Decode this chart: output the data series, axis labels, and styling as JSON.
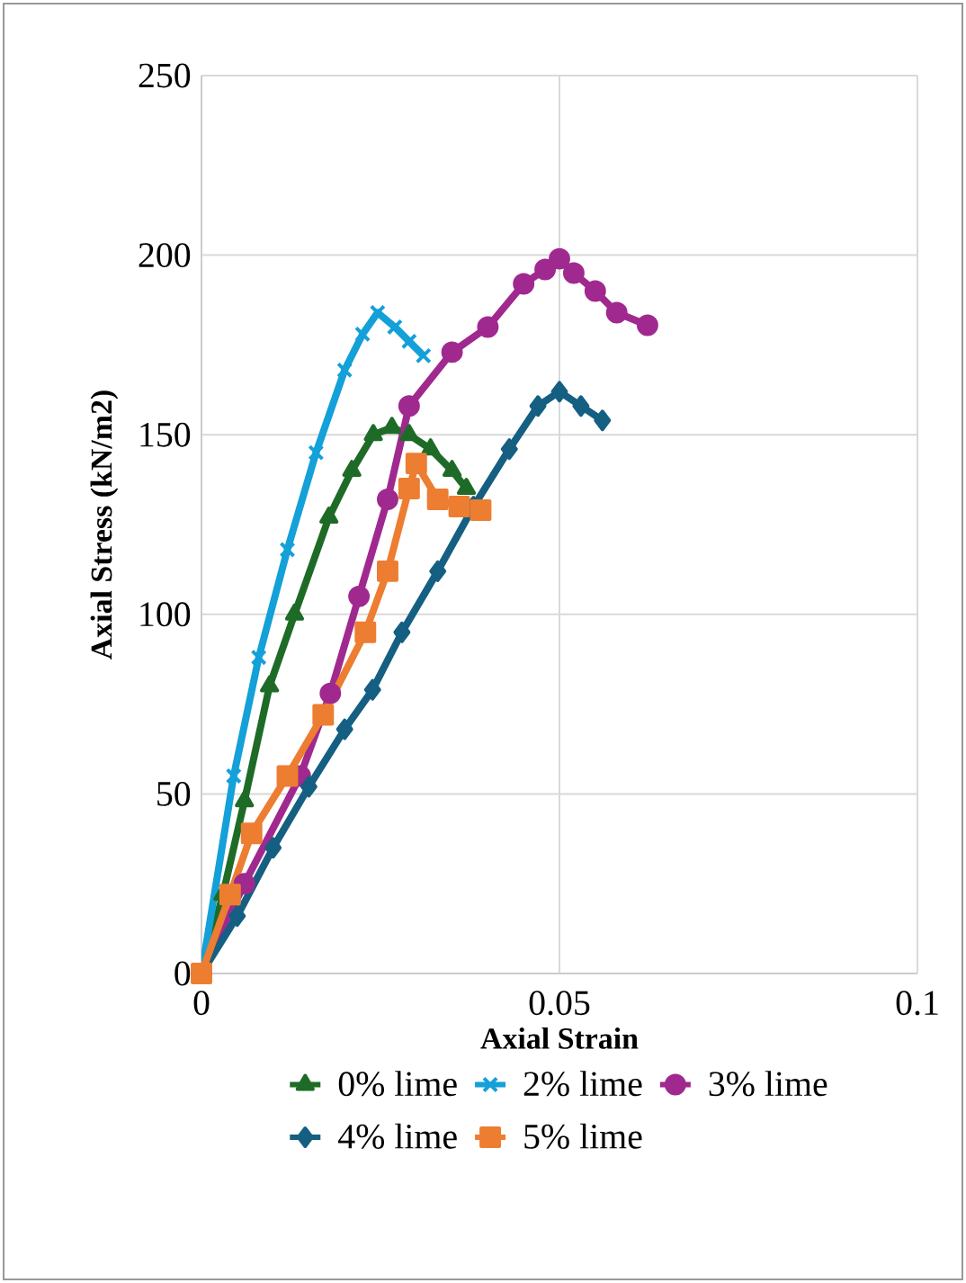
{
  "chart_data": {
    "type": "line",
    "xlabel": "Axial Strain",
    "ylabel": "Axial Stress (kN/m2)",
    "xlim": [
      0,
      0.1
    ],
    "xticks": [
      0,
      0.05,
      0.1
    ],
    "ylim": [
      0,
      250
    ],
    "yticks": [
      0,
      50,
      100,
      150,
      200,
      250
    ],
    "grid": true,
    "legend": "bottom",
    "line_style": "solid",
    "series": [
      {
        "name": "0% lime",
        "color": "#1e6b27",
        "marker": "triangle",
        "x": [
          0,
          0.003,
          0.006,
          0.0095,
          0.013,
          0.0178,
          0.021,
          0.024,
          0.0266,
          0.029,
          0.032,
          0.035,
          0.037
        ],
        "values": [
          0,
          22,
          48,
          80,
          100,
          127,
          140,
          150,
          152,
          150,
          146,
          140,
          135
        ]
      },
      {
        "name": "2% lime",
        "color": "#14a0d8",
        "marker": "cross",
        "x": [
          0,
          0.0045,
          0.008,
          0.012,
          0.016,
          0.02,
          0.0225,
          0.0246,
          0.027,
          0.029,
          0.031
        ],
        "values": [
          0,
          55,
          88,
          118,
          145,
          168,
          178,
          184,
          180,
          176,
          172
        ]
      },
      {
        "name": "3% lime",
        "color": "#a0298f",
        "marker": "circle",
        "x": [
          0,
          0.006,
          0.0138,
          0.018,
          0.022,
          0.026,
          0.029,
          0.035,
          0.04,
          0.045,
          0.048,
          0.05,
          0.052,
          0.055,
          0.058,
          0.0623
        ],
        "values": [
          0,
          25,
          55,
          78,
          105,
          132,
          158,
          173,
          180,
          192,
          196,
          199,
          195,
          190,
          184,
          180.5
        ]
      },
      {
        "name": "4% lime",
        "color": "#145f82",
        "marker": "diamond",
        "x": [
          0,
          0.005,
          0.01,
          0.015,
          0.02,
          0.0239,
          0.028,
          0.033,
          0.038,
          0.043,
          0.047,
          0.05,
          0.053,
          0.056
        ],
        "values": [
          0,
          16,
          35,
          52,
          68,
          79,
          95,
          112,
          130,
          146,
          158,
          162,
          158,
          154
        ]
      },
      {
        "name": "5% lime",
        "color": "#ed7d31",
        "marker": "square",
        "x": [
          0,
          0.004,
          0.007,
          0.012,
          0.017,
          0.0229,
          0.026,
          0.029,
          0.03,
          0.033,
          0.036,
          0.039
        ],
        "values": [
          0,
          22,
          39,
          55,
          72,
          95,
          112,
          135,
          142,
          132,
          130,
          129
        ]
      }
    ]
  }
}
